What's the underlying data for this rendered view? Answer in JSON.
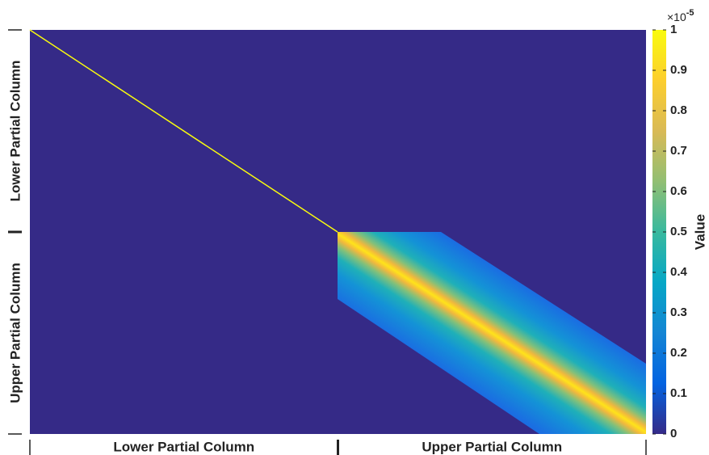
{
  "chart_data": {
    "type": "heatmap",
    "x_categories": [
      "Lower Partial Column",
      "Upper Partial Column"
    ],
    "y_categories": [
      "Lower Partial Column",
      "Upper Partial Column"
    ],
    "colorbar": {
      "label": "Value",
      "clim": [
        0,
        1
      ],
      "ticks": [
        0,
        0.1,
        0.2,
        0.3,
        0.4,
        0.5,
        0.6,
        0.7,
        0.8,
        0.9,
        1
      ],
      "multiplier": {
        "base": "×10",
        "exponent": "-5"
      }
    },
    "colormap": [
      "#352a87",
      "#0363e1",
      "#1485d4",
      "#06a7c6",
      "#38b99e",
      "#92bf73",
      "#d9ba56",
      "#fcce2e",
      "#f9fb0e"
    ]
  }
}
